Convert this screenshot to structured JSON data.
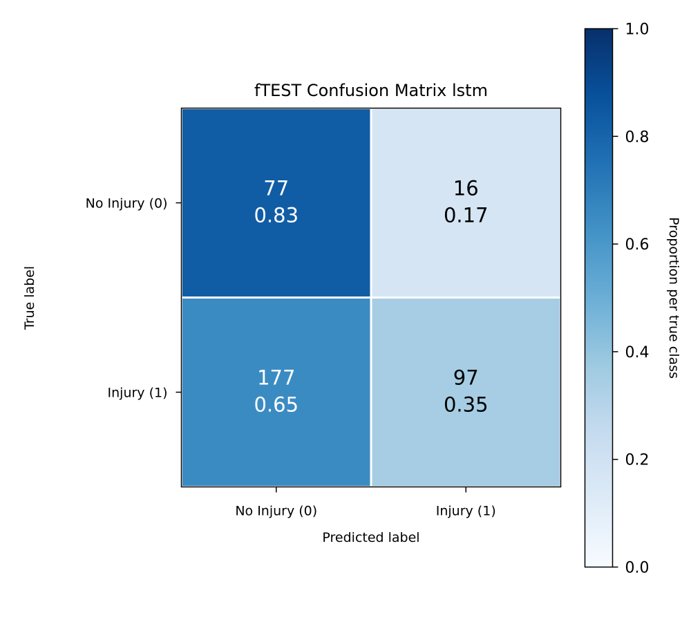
{
  "chart_data": {
    "type": "heatmap",
    "title": "fTEST Confusion Matrix lstm",
    "xlabel": "Predicted label",
    "ylabel": "True label",
    "x_categories": [
      "No Injury (0)",
      "Injury (1)"
    ],
    "y_categories": [
      "No Injury (0)",
      "Injury (1)"
    ],
    "cells": [
      {
        "row": 0,
        "col": 0,
        "count": "77",
        "proportion": "0.83",
        "value": 0.83
      },
      {
        "row": 0,
        "col": 1,
        "count": "16",
        "proportion": "0.17",
        "value": 0.17
      },
      {
        "row": 1,
        "col": 0,
        "count": "177",
        "proportion": "0.65",
        "value": 0.65
      },
      {
        "row": 1,
        "col": 1,
        "count": "97",
        "proportion": "0.35",
        "value": 0.35
      }
    ],
    "colorbar": {
      "label": "Proportion per true class",
      "range": [
        0,
        1
      ],
      "ticks": [
        "0.0",
        "0.2",
        "0.4",
        "0.6",
        "0.8",
        "1.0"
      ],
      "colormap": "Blues"
    },
    "text_colors": {
      "dark_cell": "#ffffff",
      "light_cell": "#000000"
    },
    "grid": false
  }
}
